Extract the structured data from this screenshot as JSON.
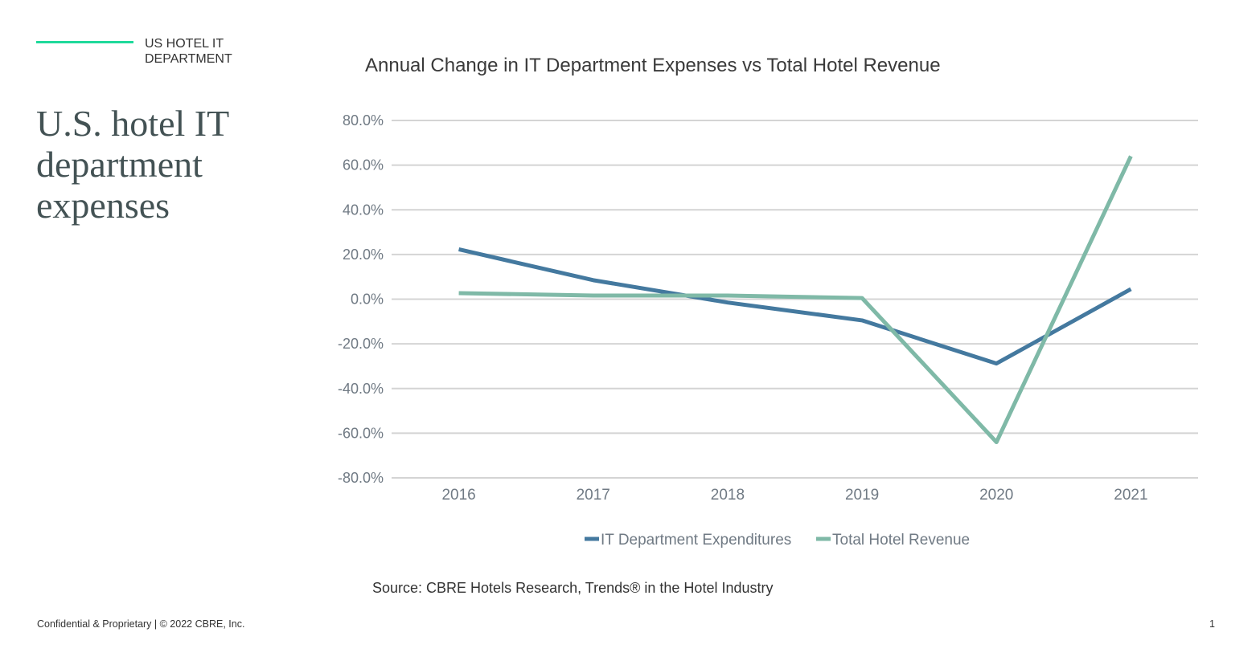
{
  "header": {
    "section_label": "US HOTEL IT DEPARTMENT",
    "accent_color": "#1ed99b"
  },
  "slide_title": "U.S. hotel IT department expenses",
  "source": "Source: CBRE Hotels Research, Trends® in the Hotel Industry",
  "footer": {
    "copyright": "Confidential & Proprietary | © 2022 CBRE, Inc.",
    "page_number": "1"
  },
  "chart_data": {
    "type": "line",
    "title": "Annual Change in IT Department Expenses vs Total Hotel Revenue",
    "xlabel": "",
    "ylabel": "",
    "categories": [
      "2016",
      "2017",
      "2018",
      "2019",
      "2020",
      "2021"
    ],
    "ylim": [
      -80,
      80
    ],
    "yticks": [
      "80.0%",
      "60.0%",
      "40.0%",
      "20.0%",
      "0.0%",
      "-20.0%",
      "-40.0%",
      "-60.0%",
      "-80.0%"
    ],
    "grid": true,
    "legend_position": "bottom",
    "series": [
      {
        "name": "IT Department Expenditures",
        "color": "#44799f",
        "values": [
          22.3,
          8.5,
          -1.5,
          -9.5,
          -28.8,
          4.5
        ]
      },
      {
        "name": "Total Hotel Revenue",
        "color": "#7fb9a7",
        "values": [
          2.7,
          1.6,
          1.6,
          0.5,
          -64,
          64
        ]
      }
    ]
  }
}
